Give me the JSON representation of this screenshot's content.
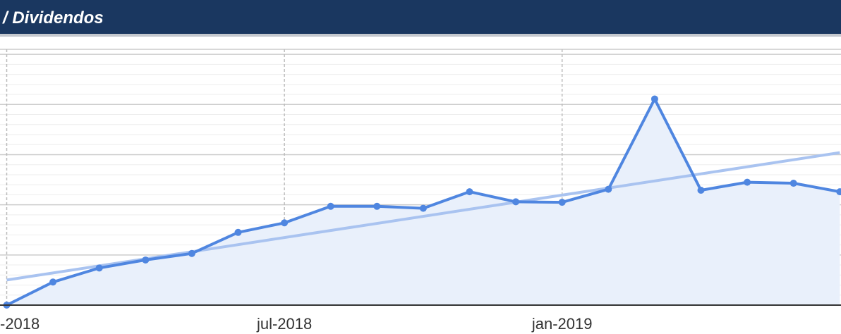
{
  "header": {
    "title": "/ Dividendos"
  },
  "chart_data": {
    "type": "area",
    "title": "Dividendos",
    "xlabel": "",
    "ylabel": "",
    "x_tick_labels": [
      {
        "label": "-2018",
        "x": "2018-01"
      },
      {
        "label": "jul-2018",
        "x": "2018-07"
      },
      {
        "label": "jan-2019",
        "x": "2019-01"
      }
    ],
    "x_range": [
      "2018-01",
      "2019-07"
    ],
    "y_range": [
      0,
      5.1
    ],
    "grid": {
      "major_vertical": true,
      "major_horizontal": true,
      "minor_horizontal": true
    },
    "series": [
      {
        "role": "data",
        "color": "#4f86e0",
        "fill": "#e9f0fb",
        "x": [
          "2018-01",
          "2018-02",
          "2018-03",
          "2018-04",
          "2018-05",
          "2018-06",
          "2018-07",
          "2018-08",
          "2018-09",
          "2018-10",
          "2018-11",
          "2018-12",
          "2019-01",
          "2019-02",
          "2019-03",
          "2019-04",
          "2019-05",
          "2019-06",
          "2019-07"
        ],
        "values": [
          0.0,
          0.46,
          0.74,
          0.9,
          1.03,
          1.45,
          1.64,
          1.97,
          1.97,
          1.93,
          2.26,
          2.06,
          2.05,
          2.31,
          4.11,
          2.29,
          2.45,
          2.43,
          2.26
        ]
      },
      {
        "role": "trendline",
        "color": "#a9c3f0",
        "x": [
          "2018-01",
          "2019-07"
        ],
        "values": [
          0.5,
          3.04
        ]
      }
    ]
  }
}
